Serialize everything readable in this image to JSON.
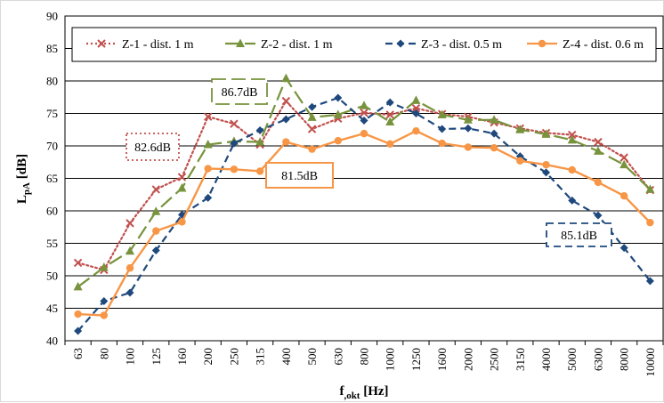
{
  "chart_data": {
    "type": "line",
    "title": "",
    "xlabel": {
      "main": "f",
      "sub": ",okt",
      "unit": " [Hz]"
    },
    "ylabel": {
      "main": "L",
      "sub": "pA",
      "unit": " [dB]"
    },
    "ylim": [
      40,
      90
    ],
    "yticks": [
      40,
      45,
      50,
      55,
      60,
      65,
      70,
      75,
      80,
      85,
      90
    ],
    "grid": "horizontal",
    "legend_position": "top",
    "categories": [
      "63",
      "80",
      "100",
      "125",
      "160",
      "200",
      "250",
      "315",
      "400",
      "500",
      "630",
      "800",
      "1000",
      "1250",
      "1600",
      "2000",
      "2500",
      "3150",
      "4000",
      "5000",
      "6300",
      "8000",
      "10000"
    ],
    "series": [
      {
        "name": "Z-1 - dist. 1 m",
        "color": "#c0504d",
        "dash": "dotted",
        "marker": "x",
        "values": [
          52.0,
          50.9,
          58.1,
          63.3,
          65.2,
          74.5,
          73.4,
          70.2,
          76.9,
          72.6,
          74.2,
          75.1,
          74.8,
          75.8,
          74.9,
          74.5,
          73.6,
          72.7,
          72.0,
          71.7,
          70.6,
          68.2,
          63.2
        ]
      },
      {
        "name": "Z-2 - dist. 1 m",
        "color": "#77933c",
        "dash": "longdash",
        "marker": "triangle",
        "values": [
          48.3,
          51.3,
          53.8,
          59.9,
          63.5,
          70.2,
          70.7,
          70.6,
          80.4,
          74.4,
          74.8,
          76.2,
          73.7,
          77.0,
          74.8,
          74.0,
          74.0,
          72.5,
          71.8,
          70.9,
          69.2,
          67.1,
          63.3
        ]
      },
      {
        "name": "Z-3 - dist. 0.5 m",
        "color": "#1f497d",
        "dash": "dashed",
        "marker": "diamond",
        "values": [
          41.5,
          46.1,
          47.4,
          53.9,
          59.4,
          62.0,
          70.4,
          72.4,
          74.1,
          76.0,
          77.4,
          73.9,
          76.7,
          75.0,
          72.6,
          72.7,
          71.9,
          68.4,
          65.9,
          61.6,
          59.3,
          54.3,
          49.2
        ]
      },
      {
        "name": "Z-4 - dist. 0.6 m",
        "color": "#f79646",
        "dash": "solid",
        "marker": "circle",
        "values": [
          44.1,
          43.9,
          51.2,
          56.9,
          58.3,
          66.5,
          66.4,
          66.1,
          70.6,
          69.5,
          70.8,
          71.9,
          70.3,
          72.3,
          70.4,
          69.8,
          69.7,
          67.7,
          67.1,
          66.3,
          64.4,
          62.3,
          58.2
        ]
      }
    ],
    "annotations": [
      {
        "text": "86.7dB",
        "series": 1,
        "box_style": "longdash"
      },
      {
        "text": "82.6dB",
        "series": 0,
        "box_style": "dotted"
      },
      {
        "text": "81.5dB",
        "series": 3,
        "box_style": "solid"
      },
      {
        "text": "85.1dB",
        "series": 2,
        "box_style": "dashed"
      }
    ]
  }
}
